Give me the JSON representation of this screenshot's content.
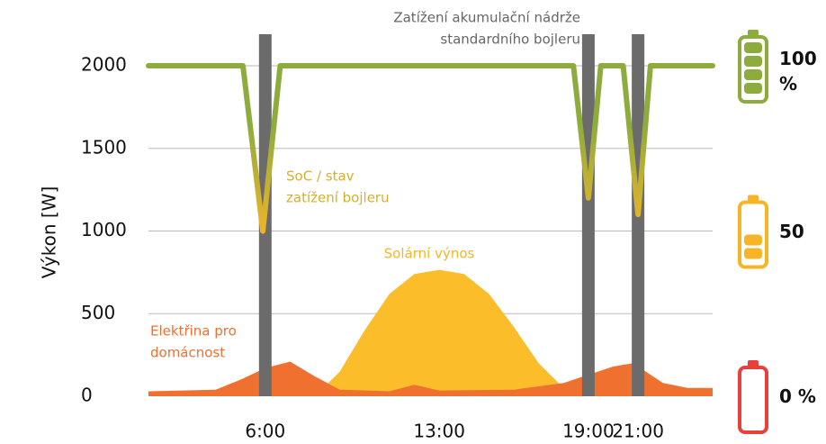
{
  "chart_data": {
    "type": "line",
    "ylabel": "Výkon [W]",
    "xlim": [
      1.3,
      24
    ],
    "ylim": [
      0,
      2000
    ],
    "xticks": [
      {
        "value": 6,
        "label": "6:00"
      },
      {
        "value": 13,
        "label": "13:00"
      },
      {
        "value": 19,
        "label": "19:00"
      },
      {
        "value": 21,
        "label": "21:00"
      }
    ],
    "yticks": [
      0,
      500,
      1000,
      1500,
      2000
    ],
    "grid": true,
    "highlight": {
      "x": [
        6,
        19,
        21
      ],
      "color": "#6b6b6b",
      "label_lines": [
        "Zatížení akumulační nádrže",
        "standardního bojleru"
      ]
    },
    "series": [
      {
        "type": "area",
        "name_lines": [
          "Solární výnos"
        ],
        "color": "#fbbd2a",
        "x": [
          8,
          9,
          10,
          11,
          12,
          13,
          14,
          15,
          16,
          17,
          18,
          19
        ],
        "values": [
          0,
          150,
          400,
          620,
          740,
          765,
          740,
          620,
          420,
          200,
          50,
          0
        ]
      },
      {
        "type": "area",
        "name_lines": [
          "Elektřina pro",
          "domácnost"
        ],
        "color": "#f07030",
        "x": [
          1.3,
          4,
          5,
          6,
          7,
          8,
          9,
          11,
          12,
          13,
          16,
          18,
          19,
          20,
          20.8,
          22,
          23,
          24
        ],
        "values": [
          30,
          40,
          100,
          170,
          210,
          120,
          40,
          30,
          70,
          35,
          40,
          80,
          130,
          180,
          200,
          80,
          50,
          50
        ]
      },
      {
        "type": "line",
        "name_lines": [
          "SoC / stav",
          "zatížení bojleru"
        ],
        "colors": [
          "#8eac3e",
          "#f0b428"
        ],
        "x": [
          1.3,
          5.1,
          5.9,
          6.6,
          18.4,
          19.0,
          19.5,
          20.4,
          21.0,
          21.5,
          24
        ],
        "values": [
          2000,
          2000,
          1000,
          2000,
          2000,
          1200,
          2000,
          2000,
          1100,
          2000,
          2000
        ]
      }
    ],
    "battery_levels": [
      {
        "value": 100,
        "label": "100 %"
      },
      50,
      {
        "value": 0,
        "label": "0 %"
      }
    ],
    "battery_colors": [
      "#8eac3e",
      "#f5b527",
      "#e8403a"
    ]
  }
}
